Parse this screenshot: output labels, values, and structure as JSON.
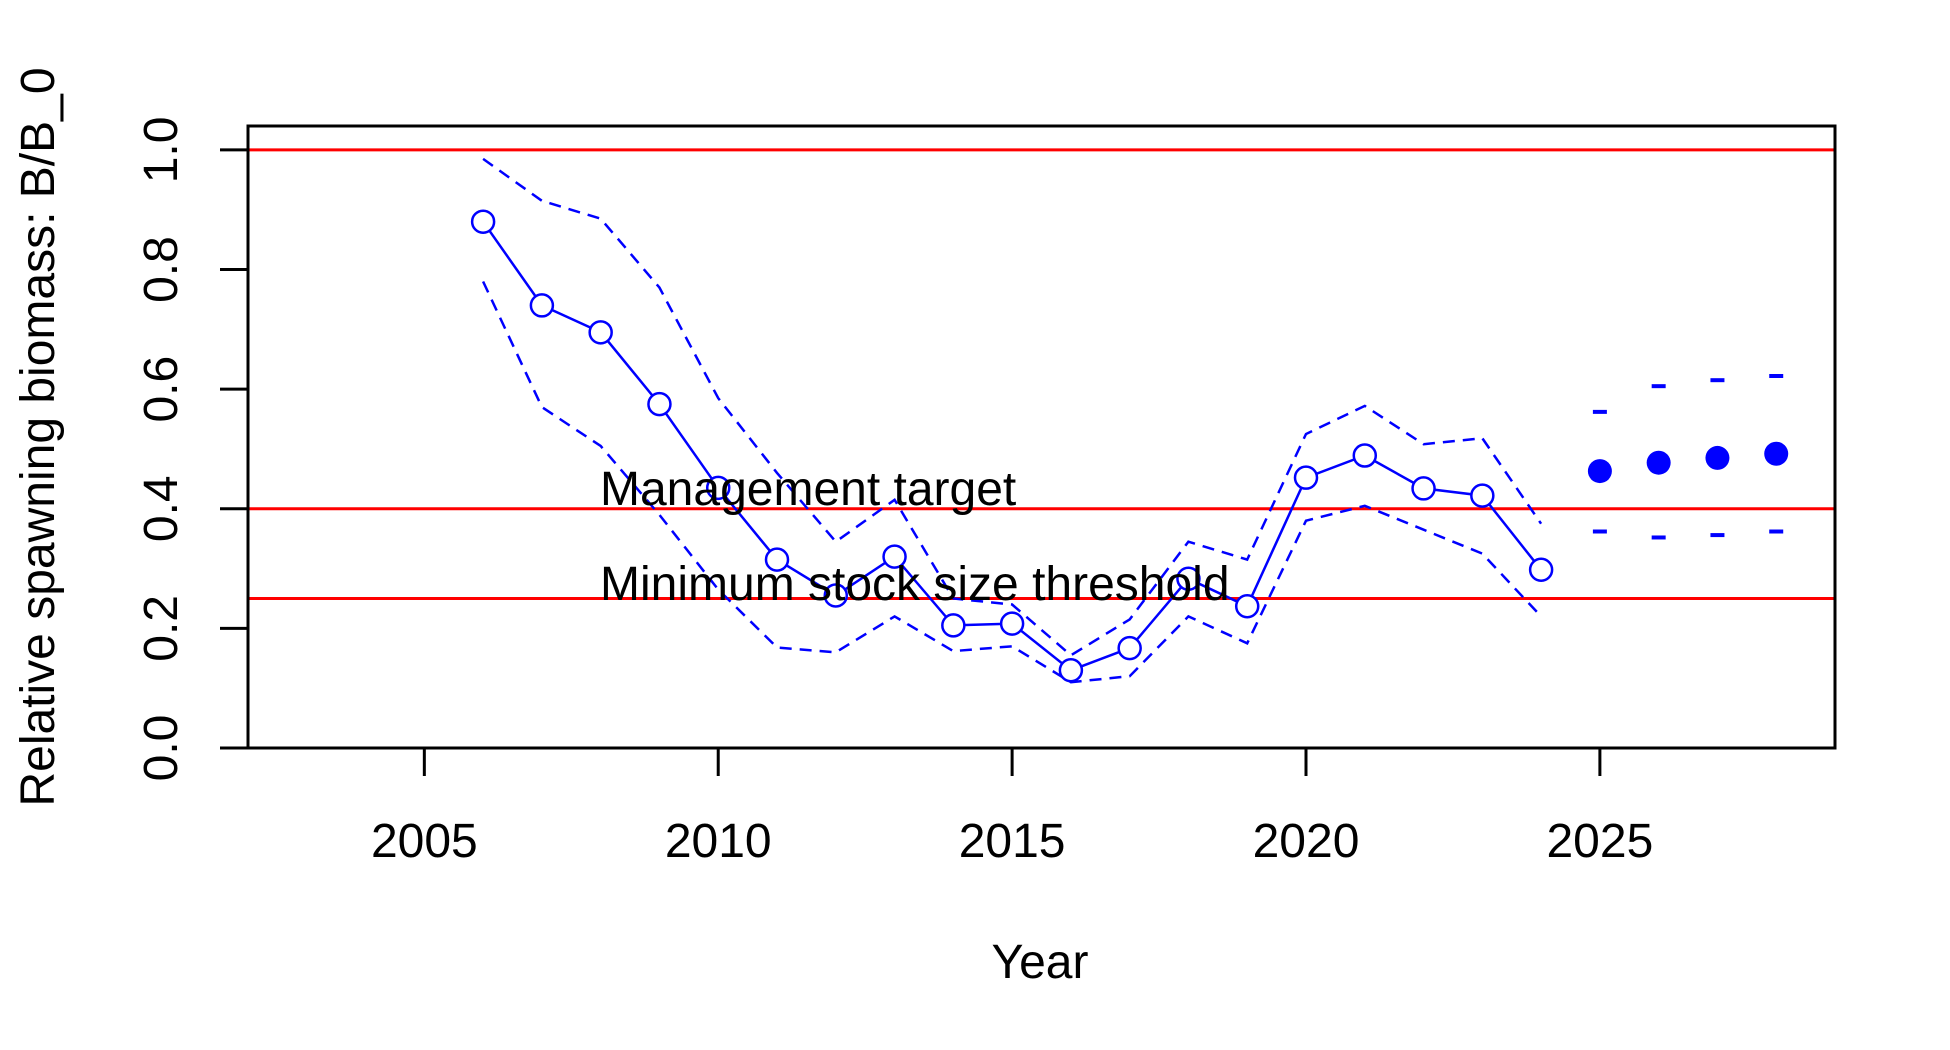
{
  "chart_data": {
    "type": "line",
    "title": "",
    "xlabel": "Year",
    "ylabel": "Relative spawning biomass: B/B_0",
    "xlim": [
      2002,
      2029
    ],
    "ylim": [
      0,
      1.04
    ],
    "x_ticks": [
      2005,
      2010,
      2015,
      2020,
      2025
    ],
    "y_ticks": [
      0.0,
      0.2,
      0.4,
      0.6,
      0.8,
      1.0
    ],
    "x_tick_labels": [
      "2005",
      "2010",
      "2015",
      "2020",
      "2025"
    ],
    "y_tick_labels": [
      "0.0",
      "0.2",
      "0.4",
      "0.6",
      "0.8",
      "1.0"
    ],
    "grid": false,
    "series_color": "#0000ff",
    "reference_color": "#ff0000",
    "reference_lines": [
      {
        "y": 1.0,
        "label": ""
      },
      {
        "y": 0.4,
        "label": "Management target"
      },
      {
        "y": 0.25,
        "label": "Minimum stock size threshold"
      }
    ],
    "estimate": {
      "x": [
        2006,
        2007,
        2008,
        2009,
        2010,
        2011,
        2012,
        2013,
        2014,
        2015,
        2016,
        2017,
        2018,
        2019,
        2020,
        2021,
        2022,
        2023,
        2024
      ],
      "values": [
        0.88,
        0.74,
        0.695,
        0.575,
        0.435,
        0.315,
        0.255,
        0.32,
        0.205,
        0.208,
        0.13,
        0.167,
        0.283,
        0.237,
        0.452,
        0.489,
        0.434,
        0.422,
        0.298
      ],
      "upper": [
        0.985,
        0.915,
        0.885,
        0.77,
        0.585,
        0.46,
        0.345,
        0.415,
        0.25,
        0.24,
        0.155,
        0.215,
        0.345,
        0.315,
        0.525,
        0.572,
        0.508,
        0.518,
        0.375
      ],
      "lower": [
        0.78,
        0.57,
        0.505,
        0.39,
        0.265,
        0.168,
        0.16,
        0.22,
        0.162,
        0.17,
        0.11,
        0.12,
        0.22,
        0.175,
        0.38,
        0.405,
        0.365,
        0.325,
        0.22
      ]
    },
    "projection": {
      "x": [
        2025,
        2026,
        2027,
        2028
      ],
      "values": [
        0.463,
        0.477,
        0.485,
        0.492
      ],
      "upper": [
        0.562,
        0.605,
        0.615,
        0.622
      ],
      "lower": [
        0.362,
        0.352,
        0.356,
        0.362
      ]
    }
  }
}
